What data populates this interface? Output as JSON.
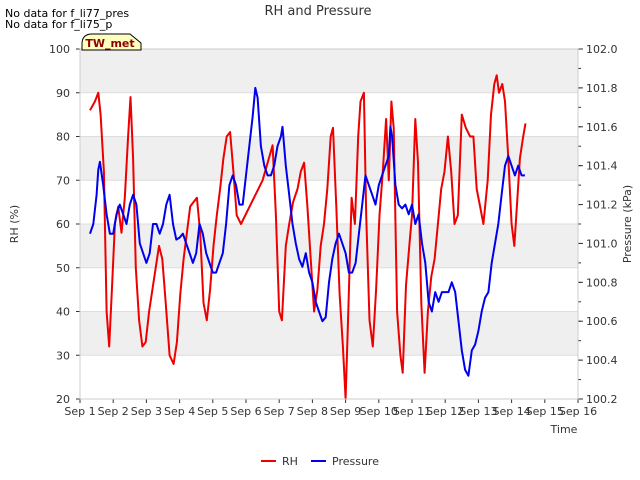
{
  "notes": [
    "No data for f_li77_pres",
    "No data for f_li75_p"
  ],
  "badge": "TW_met",
  "chart_data": {
    "type": "line",
    "title": "RH and Pressure",
    "xlabel": "Time",
    "ylabel": "RH (%)",
    "ylabel_right": "Pressure (kPa)",
    "xlim": [
      1,
      16
    ],
    "ylim": [
      20,
      100
    ],
    "ylim_right": [
      100.2,
      102.0
    ],
    "x_ticks": [
      "Sep 1",
      "Sep 2",
      "Sep 3",
      "Sep 4",
      "Sep 5",
      "Sep 6",
      "Sep 7",
      "Sep 8",
      "Sep 9",
      "Sep 10",
      "Sep 11",
      "Sep 12",
      "Sep 13",
      "Sep 14",
      "Sep 15",
      "Sep 16"
    ],
    "y_ticks": [
      "20",
      "30",
      "40",
      "50",
      "60",
      "70",
      "80",
      "90",
      "100"
    ],
    "y_ticks_right": [
      "100.2",
      "100.4",
      "100.6",
      "100.8",
      "101.0",
      "101.2",
      "101.4",
      "101.6",
      "101.8",
      "102.0"
    ],
    "legend": [
      "RH",
      "Pressure"
    ],
    "series": [
      {
        "name": "RH",
        "color": "#ee0000",
        "axis": "left",
        "points": [
          [
            1.3,
            86
          ],
          [
            1.45,
            88
          ],
          [
            1.55,
            90
          ],
          [
            1.62,
            85
          ],
          [
            1.72,
            72
          ],
          [
            1.8,
            40
          ],
          [
            1.88,
            32
          ],
          [
            1.96,
            45
          ],
          [
            2.05,
            60
          ],
          [
            2.15,
            64
          ],
          [
            2.25,
            58
          ],
          [
            2.35,
            66
          ],
          [
            2.45,
            80
          ],
          [
            2.52,
            89
          ],
          [
            2.6,
            75
          ],
          [
            2.68,
            50
          ],
          [
            2.78,
            38
          ],
          [
            2.88,
            32
          ],
          [
            2.98,
            33
          ],
          [
            3.08,
            40
          ],
          [
            3.18,
            45
          ],
          [
            3.28,
            50
          ],
          [
            3.38,
            55
          ],
          [
            3.48,
            52
          ],
          [
            3.58,
            42
          ],
          [
            3.7,
            30
          ],
          [
            3.82,
            28
          ],
          [
            3.92,
            33
          ],
          [
            4.02,
            44
          ],
          [
            4.12,
            52
          ],
          [
            4.22,
            58
          ],
          [
            4.32,
            64
          ],
          [
            4.42,
            65
          ],
          [
            4.52,
            66
          ],
          [
            4.62,
            58
          ],
          [
            4.72,
            42
          ],
          [
            4.82,
            38
          ],
          [
            4.92,
            45
          ],
          [
            5.02,
            55
          ],
          [
            5.12,
            62
          ],
          [
            5.22,
            68
          ],
          [
            5.32,
            75
          ],
          [
            5.42,
            80
          ],
          [
            5.52,
            81
          ],
          [
            5.62,
            72
          ],
          [
            5.72,
            62
          ],
          [
            5.85,
            60
          ],
          [
            6.5,
            70
          ],
          [
            6.8,
            78
          ],
          [
            6.9,
            62
          ],
          [
            7.0,
            40
          ],
          [
            7.08,
            38
          ],
          [
            7.2,
            55
          ],
          [
            7.3,
            60
          ],
          [
            7.42,
            65
          ],
          [
            7.55,
            68
          ],
          [
            7.65,
            72
          ],
          [
            7.75,
            74
          ],
          [
            7.85,
            64
          ],
          [
            7.95,
            52
          ],
          [
            8.05,
            40
          ],
          [
            8.15,
            45
          ],
          [
            8.25,
            55
          ],
          [
            8.35,
            60
          ],
          [
            8.45,
            68
          ],
          [
            8.55,
            80
          ],
          [
            8.62,
            82
          ],
          [
            8.72,
            64
          ],
          [
            8.82,
            44
          ],
          [
            8.92,
            32
          ],
          [
            9.0,
            20
          ],
          [
            9.08,
            40
          ],
          [
            9.18,
            66
          ],
          [
            9.28,
            60
          ],
          [
            9.38,
            80
          ],
          [
            9.45,
            88
          ],
          [
            9.55,
            90
          ],
          [
            9.62,
            62
          ],
          [
            9.72,
            38
          ],
          [
            9.82,
            32
          ],
          [
            9.92,
            45
          ],
          [
            10.02,
            62
          ],
          [
            10.12,
            72
          ],
          [
            10.22,
            84
          ],
          [
            10.3,
            70
          ],
          [
            10.38,
            88
          ],
          [
            10.45,
            82
          ],
          [
            10.55,
            40
          ],
          [
            10.65,
            30
          ],
          [
            10.72,
            26
          ],
          [
            10.82,
            46
          ],
          [
            10.92,
            55
          ],
          [
            11.0,
            62
          ],
          [
            11.1,
            84
          ],
          [
            11.18,
            74
          ],
          [
            11.28,
            42
          ],
          [
            11.38,
            26
          ],
          [
            11.48,
            40
          ],
          [
            11.58,
            48
          ],
          [
            11.68,
            52
          ],
          [
            11.78,
            60
          ],
          [
            11.88,
            68
          ],
          [
            11.98,
            72
          ],
          [
            12.08,
            80
          ],
          [
            12.18,
            72
          ],
          [
            12.28,
            60
          ],
          [
            12.38,
            62
          ],
          [
            12.5,
            85
          ],
          [
            12.62,
            82
          ],
          [
            12.75,
            80
          ],
          [
            12.85,
            80
          ],
          [
            12.95,
            68
          ],
          [
            13.05,
            64
          ],
          [
            13.15,
            60
          ],
          [
            13.28,
            70
          ],
          [
            13.38,
            85
          ],
          [
            13.48,
            92
          ],
          [
            13.55,
            94
          ],
          [
            13.62,
            90
          ],
          [
            13.72,
            92
          ],
          [
            13.8,
            88
          ],
          [
            13.9,
            75
          ],
          [
            14.0,
            60
          ],
          [
            14.08,
            55
          ],
          [
            14.15,
            63
          ],
          [
            14.25,
            75
          ],
          [
            14.35,
            80
          ],
          [
            14.42,
            83
          ]
        ]
      },
      {
        "name": "Pressure",
        "color": "#0000ee",
        "axis": "right",
        "points": [
          [
            1.3,
            101.05
          ],
          [
            1.4,
            101.1
          ],
          [
            1.5,
            101.25
          ],
          [
            1.55,
            101.38
          ],
          [
            1.6,
            101.42
          ],
          [
            1.7,
            101.3
          ],
          [
            1.8,
            101.15
          ],
          [
            1.9,
            101.05
          ],
          [
            2.0,
            101.05
          ],
          [
            2.1,
            101.15
          ],
          [
            2.2,
            101.2
          ],
          [
            2.3,
            101.15
          ],
          [
            2.4,
            101.1
          ],
          [
            2.5,
            101.2
          ],
          [
            2.6,
            101.25
          ],
          [
            2.7,
            101.2
          ],
          [
            2.8,
            101.0
          ],
          [
            2.9,
            100.95
          ],
          [
            3.0,
            100.9
          ],
          [
            3.1,
            100.95
          ],
          [
            3.2,
            101.1
          ],
          [
            3.3,
            101.1
          ],
          [
            3.4,
            101.05
          ],
          [
            3.5,
            101.1
          ],
          [
            3.6,
            101.2
          ],
          [
            3.7,
            101.25
          ],
          [
            3.8,
            101.1
          ],
          [
            3.9,
            101.02
          ],
          [
            4.0,
            101.03
          ],
          [
            4.1,
            101.05
          ],
          [
            4.2,
            101.0
          ],
          [
            4.3,
            100.95
          ],
          [
            4.4,
            100.9
          ],
          [
            4.5,
            100.95
          ],
          [
            4.6,
            101.1
          ],
          [
            4.7,
            101.05
          ],
          [
            4.8,
            100.95
          ],
          [
            4.9,
            100.9
          ],
          [
            5.0,
            100.85
          ],
          [
            5.1,
            100.85
          ],
          [
            5.2,
            100.9
          ],
          [
            5.3,
            100.95
          ],
          [
            5.4,
            101.1
          ],
          [
            5.5,
            101.3
          ],
          [
            5.6,
            101.35
          ],
          [
            5.7,
            101.3
          ],
          [
            5.8,
            101.2
          ],
          [
            5.9,
            101.2
          ],
          [
            6.0,
            101.35
          ],
          [
            6.1,
            101.5
          ],
          [
            6.2,
            101.65
          ],
          [
            6.28,
            101.8
          ],
          [
            6.35,
            101.75
          ],
          [
            6.45,
            101.5
          ],
          [
            6.55,
            101.4
          ],
          [
            6.65,
            101.35
          ],
          [
            6.75,
            101.35
          ],
          [
            6.85,
            101.4
          ],
          [
            6.95,
            101.5
          ],
          [
            7.05,
            101.55
          ],
          [
            7.1,
            101.6
          ],
          [
            7.2,
            101.4
          ],
          [
            7.3,
            101.25
          ],
          [
            7.4,
            101.1
          ],
          [
            7.5,
            101.0
          ],
          [
            7.6,
            100.92
          ],
          [
            7.7,
            100.88
          ],
          [
            7.8,
            100.95
          ],
          [
            7.9,
            100.85
          ],
          [
            8.0,
            100.8
          ],
          [
            8.1,
            100.7
          ],
          [
            8.2,
            100.65
          ],
          [
            8.3,
            100.6
          ],
          [
            8.4,
            100.62
          ],
          [
            8.5,
            100.8
          ],
          [
            8.6,
            100.92
          ],
          [
            8.7,
            101.0
          ],
          [
            8.8,
            101.05
          ],
          [
            8.9,
            101.0
          ],
          [
            9.0,
            100.95
          ],
          [
            9.1,
            100.85
          ],
          [
            9.2,
            100.85
          ],
          [
            9.3,
            100.9
          ],
          [
            9.4,
            101.05
          ],
          [
            9.5,
            101.2
          ],
          [
            9.6,
            101.35
          ],
          [
            9.7,
            101.3
          ],
          [
            9.8,
            101.25
          ],
          [
            9.9,
            101.2
          ],
          [
            10.0,
            101.3
          ],
          [
            10.1,
            101.35
          ],
          [
            10.2,
            101.4
          ],
          [
            10.3,
            101.45
          ],
          [
            10.35,
            101.6
          ],
          [
            10.4,
            101.55
          ],
          [
            10.5,
            101.3
          ],
          [
            10.6,
            101.2
          ],
          [
            10.7,
            101.18
          ],
          [
            10.8,
            101.2
          ],
          [
            10.9,
            101.15
          ],
          [
            11.0,
            101.2
          ],
          [
            11.1,
            101.1
          ],
          [
            11.2,
            101.15
          ],
          [
            11.3,
            101.0
          ],
          [
            11.4,
            100.9
          ],
          [
            11.5,
            100.7
          ],
          [
            11.6,
            100.65
          ],
          [
            11.7,
            100.75
          ],
          [
            11.8,
            100.7
          ],
          [
            11.9,
            100.75
          ],
          [
            12.0,
            100.75
          ],
          [
            12.1,
            100.75
          ],
          [
            12.2,
            100.8
          ],
          [
            12.3,
            100.75
          ],
          [
            12.4,
            100.6
          ],
          [
            12.5,
            100.45
          ],
          [
            12.6,
            100.35
          ],
          [
            12.7,
            100.32
          ],
          [
            12.8,
            100.45
          ],
          [
            12.9,
            100.48
          ],
          [
            13.0,
            100.55
          ],
          [
            13.1,
            100.65
          ],
          [
            13.2,
            100.72
          ],
          [
            13.3,
            100.75
          ],
          [
            13.4,
            100.9
          ],
          [
            13.5,
            101.0
          ],
          [
            13.6,
            101.1
          ],
          [
            13.7,
            101.25
          ],
          [
            13.8,
            101.4
          ],
          [
            13.9,
            101.45
          ],
          [
            14.0,
            101.4
          ],
          [
            14.1,
            101.35
          ],
          [
            14.2,
            101.4
          ],
          [
            14.3,
            101.35
          ],
          [
            14.4,
            101.35
          ]
        ]
      }
    ]
  }
}
